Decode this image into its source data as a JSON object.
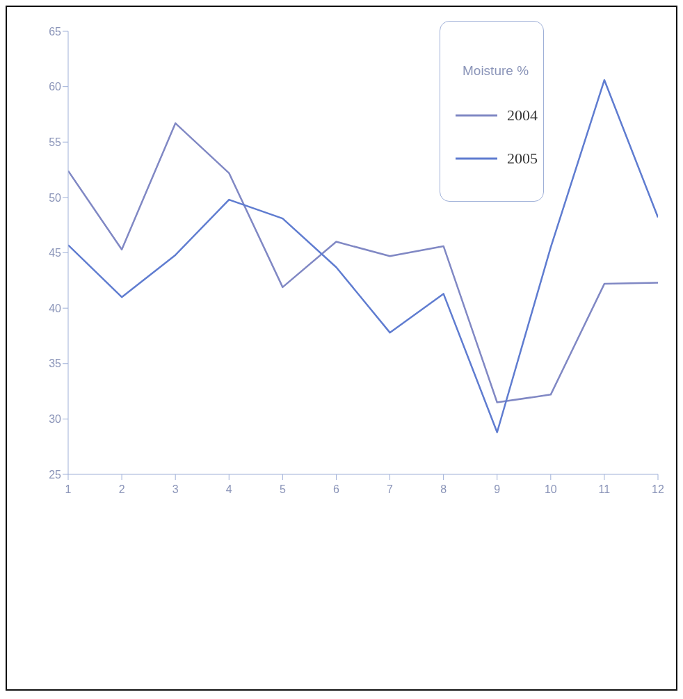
{
  "chart_data": {
    "type": "line",
    "legend_title": "Moisture %",
    "x": [
      1,
      2,
      3,
      4,
      5,
      6,
      7,
      8,
      9,
      10,
      11,
      12
    ],
    "series": [
      {
        "name": "2004",
        "color": "#8088c4",
        "values": [
          52.4,
          45.3,
          56.7,
          52.2,
          41.9,
          46.0,
          44.7,
          45.6,
          31.5,
          32.2,
          42.2,
          42.3
        ]
      },
      {
        "name": "2005",
        "color": "#5f7cd0",
        "values": [
          45.7,
          41.0,
          44.8,
          49.8,
          48.1,
          43.7,
          37.8,
          41.3,
          28.8,
          45.5,
          60.6,
          48.2
        ]
      }
    ],
    "xlim": [
      1,
      12
    ],
    "xticks": [
      1,
      2,
      3,
      4,
      5,
      6,
      7,
      8,
      9,
      10,
      11,
      12
    ],
    "ylim": [
      25,
      65
    ],
    "yticks": [
      25,
      30,
      35,
      40,
      45,
      50,
      55,
      60,
      65
    ],
    "grid": false,
    "legend": "top right",
    "marker": "none",
    "line_style": "solid"
  }
}
